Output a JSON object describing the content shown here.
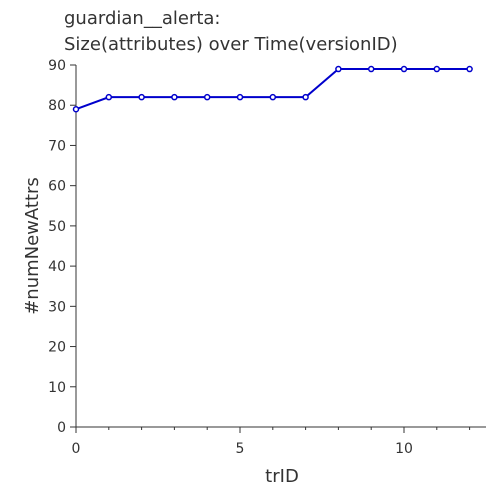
{
  "chart_data": {
    "type": "line",
    "title": "guardian__alerta:",
    "subtitle": "Size(attributes) over Time(versionID)",
    "xlabel": "trID",
    "ylabel": "#numNewAttrs",
    "xlim": [
      0,
      12.5
    ],
    "ylim": [
      0,
      90
    ],
    "xticks": [
      0,
      5,
      10
    ],
    "yticks": [
      0,
      10,
      20,
      30,
      40,
      50,
      60,
      70,
      80,
      90
    ],
    "grid": false,
    "series": [
      {
        "color": "#0000cc",
        "x": [
          0,
          1,
          2,
          3,
          4,
          5,
          6,
          7,
          8,
          9,
          10,
          11,
          12
        ],
        "y": [
          79,
          82,
          82,
          82,
          82,
          82,
          82,
          82,
          89,
          89,
          89,
          89,
          89
        ]
      }
    ]
  }
}
